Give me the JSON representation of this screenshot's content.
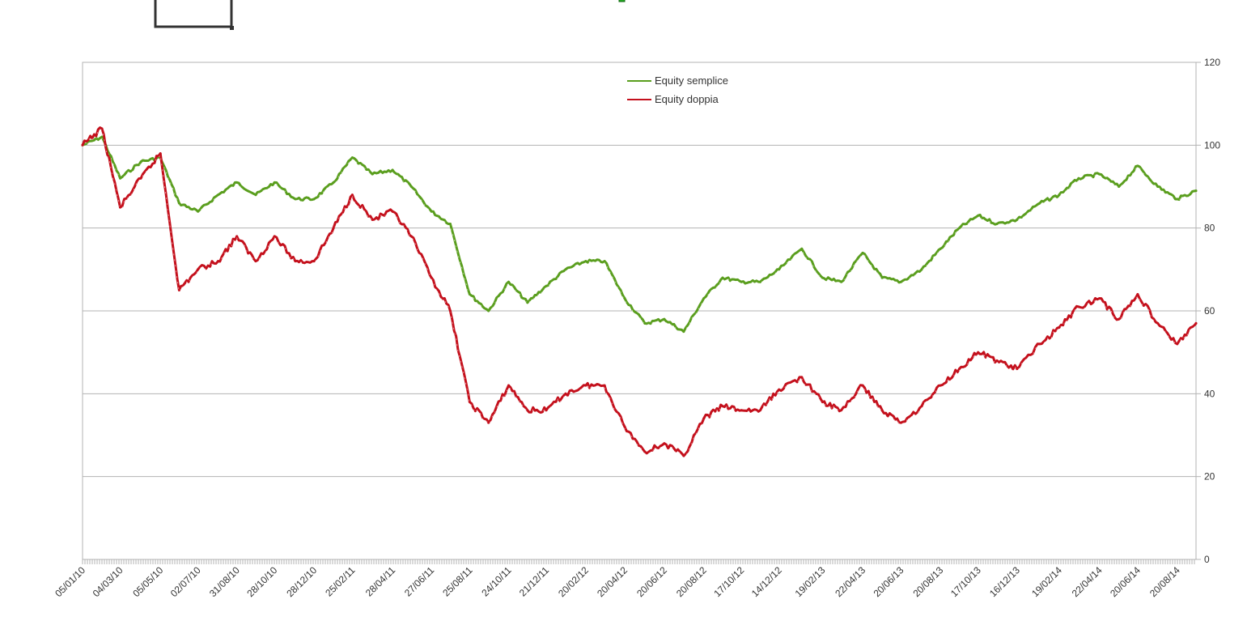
{
  "chart_data": {
    "type": "line",
    "title": "",
    "xlabel": "",
    "ylabel": "",
    "ylim": [
      0,
      120
    ],
    "yticks": [
      0,
      20,
      40,
      60,
      80,
      100,
      120
    ],
    "grid": true,
    "legend_position": "top-center",
    "x_tick_labels": [
      "05/01/10",
      "04/03/10",
      "05/05/10",
      "02/07/10",
      "31/08/10",
      "28/10/10",
      "28/12/10",
      "25/02/11",
      "28/04/11",
      "27/06/11",
      "25/08/11",
      "24/10/11",
      "21/12/11",
      "20/02/12",
      "20/04/12",
      "20/06/12",
      "20/08/12",
      "17/10/12",
      "14/12/12",
      "19/02/13",
      "22/04/13",
      "20/06/13",
      "20/08/13",
      "17/10/13",
      "16/12/13",
      "19/02/14",
      "22/04/14",
      "20/06/14",
      "20/08/14"
    ],
    "x": [
      "05/01/10",
      "04/02/10",
      "04/03/10",
      "05/04/10",
      "05/05/10",
      "03/06/10",
      "02/07/10",
      "02/08/10",
      "31/08/10",
      "29/09/10",
      "28/10/10",
      "29/11/10",
      "28/12/10",
      "27/01/11",
      "25/02/11",
      "28/03/11",
      "28/04/11",
      "27/05/11",
      "27/06/11",
      "26/07/11",
      "25/08/11",
      "23/09/11",
      "24/10/11",
      "22/11/11",
      "21/12/11",
      "20/01/12",
      "20/02/12",
      "20/03/12",
      "20/04/12",
      "21/05/12",
      "20/06/12",
      "20/07/12",
      "20/08/12",
      "18/09/12",
      "17/10/12",
      "15/11/12",
      "14/12/12",
      "18/01/13",
      "19/02/13",
      "20/03/13",
      "22/04/13",
      "22/05/13",
      "20/06/13",
      "22/07/13",
      "20/08/13",
      "18/09/13",
      "17/10/13",
      "15/11/13",
      "16/12/13",
      "20/01/14",
      "19/02/14",
      "21/03/14",
      "22/04/14",
      "22/05/14",
      "20/06/14",
      "21/07/14",
      "20/08/14",
      "18/09/14"
    ],
    "series": [
      {
        "name": "Equity semplice",
        "color": "#5a9e1e",
        "values": [
          100,
          102,
          92,
          96,
          97,
          86,
          84,
          88,
          91,
          88,
          91,
          87,
          87,
          91,
          97,
          93,
          94,
          90,
          84,
          81,
          64,
          60,
          67,
          62,
          66,
          70,
          72,
          72,
          63,
          57,
          58,
          55,
          63,
          68,
          67,
          67,
          70,
          75,
          68,
          67,
          74,
          68,
          67,
          70,
          75,
          80,
          83,
          81,
          82,
          86,
          88,
          92,
          93,
          90,
          95,
          90,
          87,
          89
        ]
      },
      {
        "name": "Equity doppia",
        "color": "#c4101c",
        "values": [
          100,
          104,
          85,
          92,
          98,
          65,
          70,
          72,
          78,
          72,
          78,
          72,
          72,
          80,
          88,
          82,
          84,
          78,
          68,
          60,
          38,
          33,
          42,
          36,
          36,
          40,
          42,
          42,
          32,
          26,
          28,
          25,
          34,
          37,
          36,
          36,
          41,
          44,
          38,
          36,
          42,
          36,
          33,
          37,
          42,
          46,
          50,
          48,
          46,
          52,
          56,
          61,
          63,
          58,
          64,
          57,
          52,
          57
        ]
      }
    ]
  }
}
